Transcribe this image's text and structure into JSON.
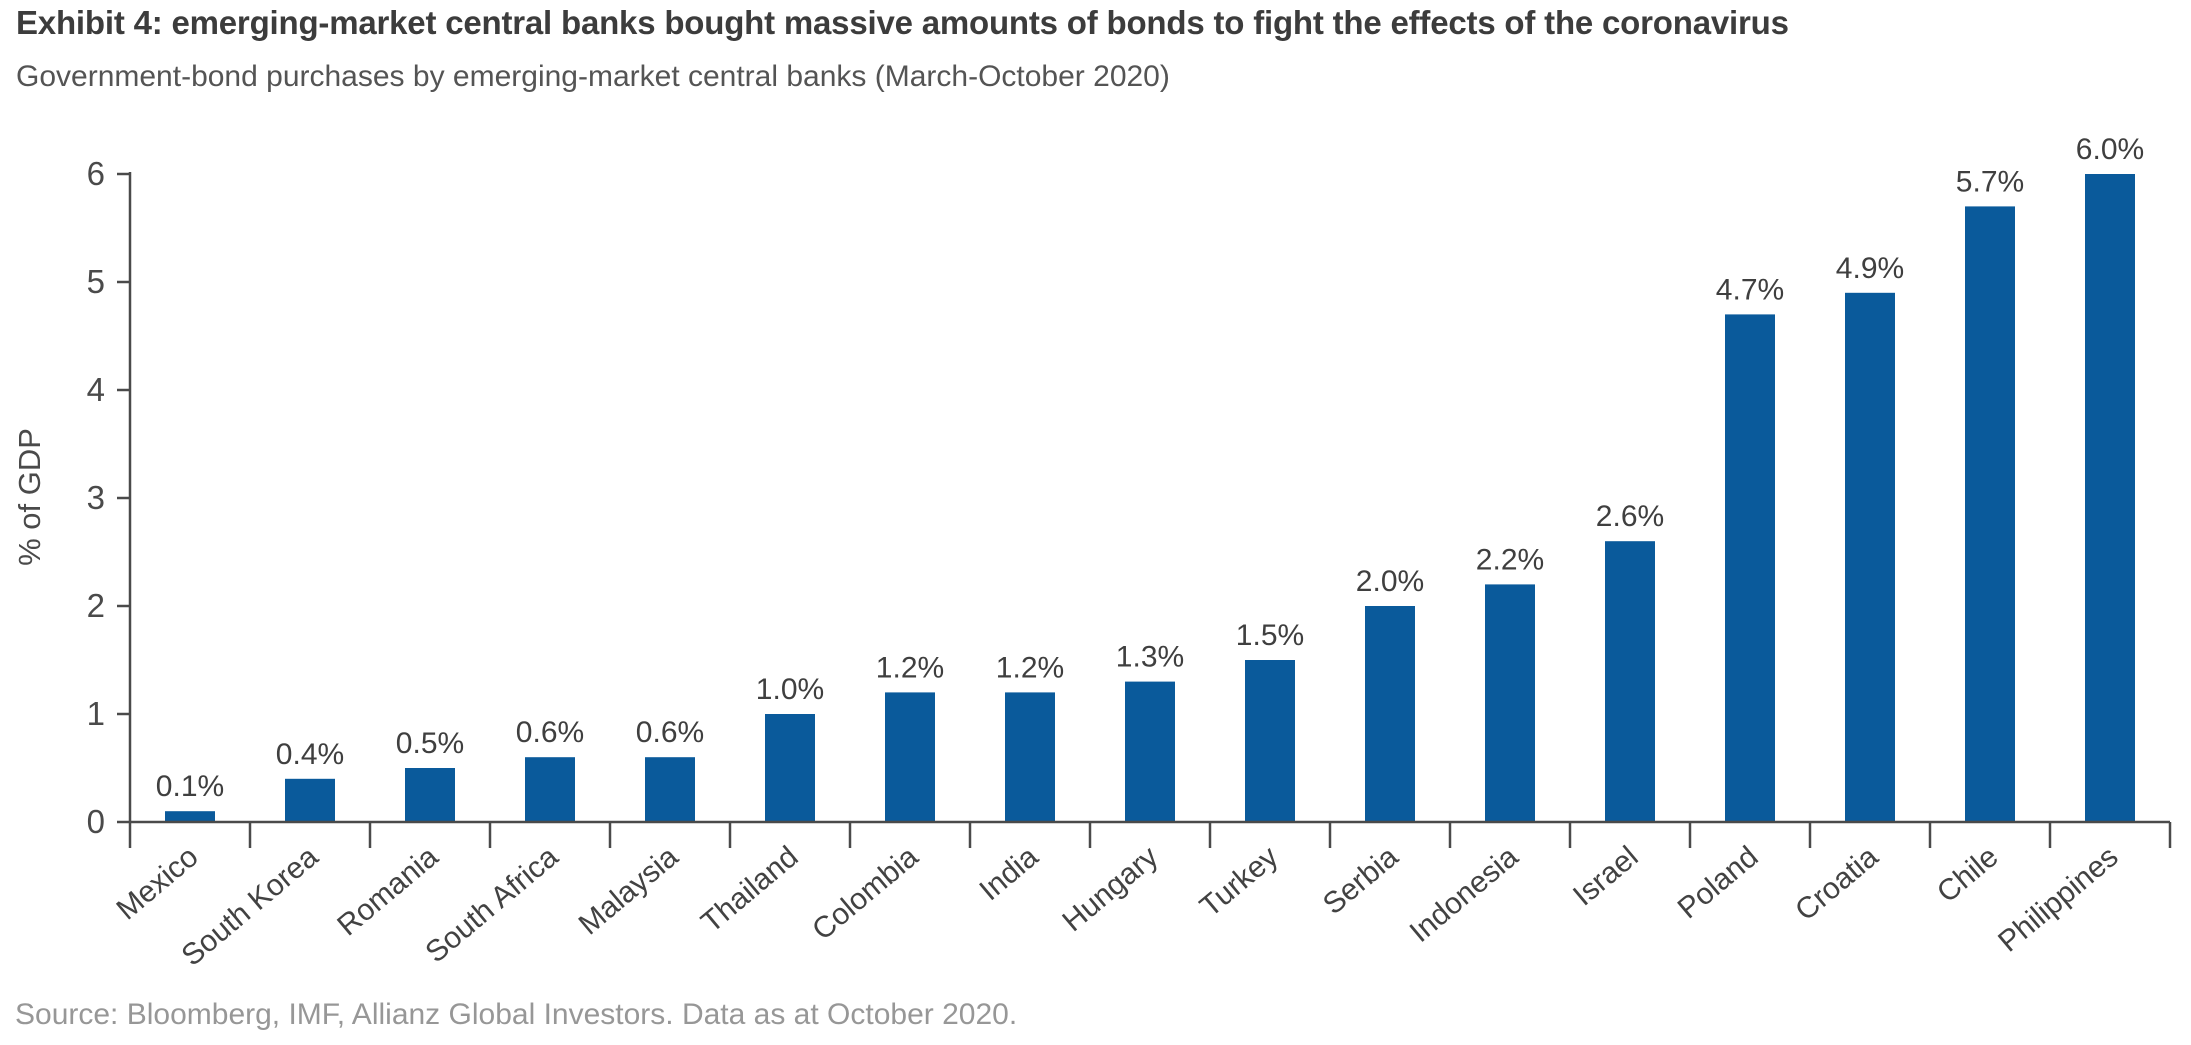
{
  "header": {
    "title": "Exhibit 4: emerging-market central banks bought massive amounts of bonds to fight the effects of the coronavirus",
    "subtitle": "Government-bond purchases by emerging-market central banks (March-October 2020)"
  },
  "footer": {
    "source": "Source: Bloomberg, IMF, Allianz Global Investors. Data as at October 2020."
  },
  "colors": {
    "bar": "#0A5A9B",
    "axis": "#4A4A4A",
    "tick_label": "#4A4A4A",
    "value_label": "#3F3F3F",
    "category_label": "#424242",
    "title": "#3C3C3C",
    "subtitle": "#545454",
    "source": "#979797"
  },
  "chart_data": {
    "type": "bar",
    "title": "Exhibit 4: emerging-market central banks bought massive amounts of bonds to fight the effects of the coronavirus",
    "subtitle": "Government-bond purchases by emerging-market central banks (March-October 2020)",
    "source": "Source: Bloomberg, IMF, Allianz Global Investors. Data as at October 2020.",
    "categories": [
      "Mexico",
      "South Korea",
      "Romania",
      "South Africa",
      "Malaysia",
      "Thailand",
      "Colombia",
      "India",
      "Hungary",
      "Turkey",
      "Serbia",
      "Indonesia",
      "Israel",
      "Poland",
      "Croatia",
      "Chile",
      "Philippines"
    ],
    "values": [
      0.1,
      0.4,
      0.5,
      0.6,
      0.6,
      1.0,
      1.2,
      1.2,
      1.3,
      1.5,
      2.0,
      2.2,
      2.6,
      4.7,
      4.9,
      5.7,
      6.0
    ],
    "value_labels": [
      "0.1%",
      "0.4%",
      "0.5%",
      "0.6%",
      "0.6%",
      "1.0%",
      "1.2%",
      "1.2%",
      "1.3%",
      "1.5%",
      "2.0%",
      "2.2%",
      "2.6%",
      "4.7%",
      "4.9%",
      "5.7%",
      "6.0%"
    ],
    "xlabel": "",
    "ylabel": "% of GDP",
    "ylim": [
      0,
      6
    ],
    "yticks": [
      0,
      1,
      2,
      3,
      4,
      5,
      6
    ],
    "grid": false,
    "legend": "none",
    "bar_color": "#0A5A9B",
    "category_label_rotation_deg": -40
  }
}
